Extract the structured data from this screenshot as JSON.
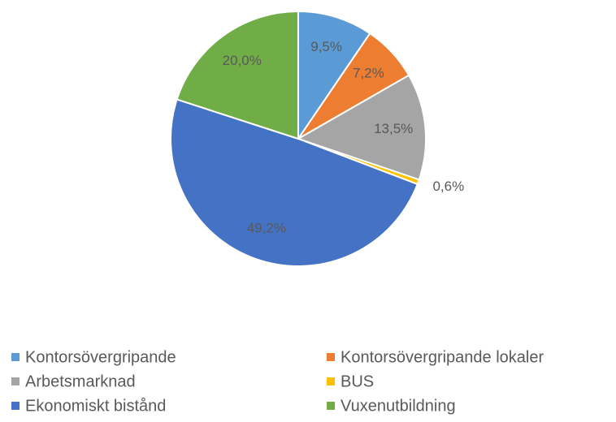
{
  "chart_data": {
    "type": "pie",
    "categories": [
      "Kontorsövergripande",
      "Kontorsövergripande lokaler",
      "Arbetsmarknad",
      "BUS",
      "Ekonomiskt bistånd",
      "Vuxenutbildning"
    ],
    "values": [
      9.5,
      7.2,
      13.5,
      0.6,
      49.2,
      20.0
    ],
    "value_labels": [
      "9,5%",
      "7,2%",
      "13,5%",
      "0,6%",
      "49,2%",
      "20,0%"
    ],
    "colors": [
      "#5b9bd5",
      "#ed7d31",
      "#a5a5a5",
      "#ffc000",
      "#4472c4",
      "#70ad47"
    ],
    "legend": "bottom"
  }
}
